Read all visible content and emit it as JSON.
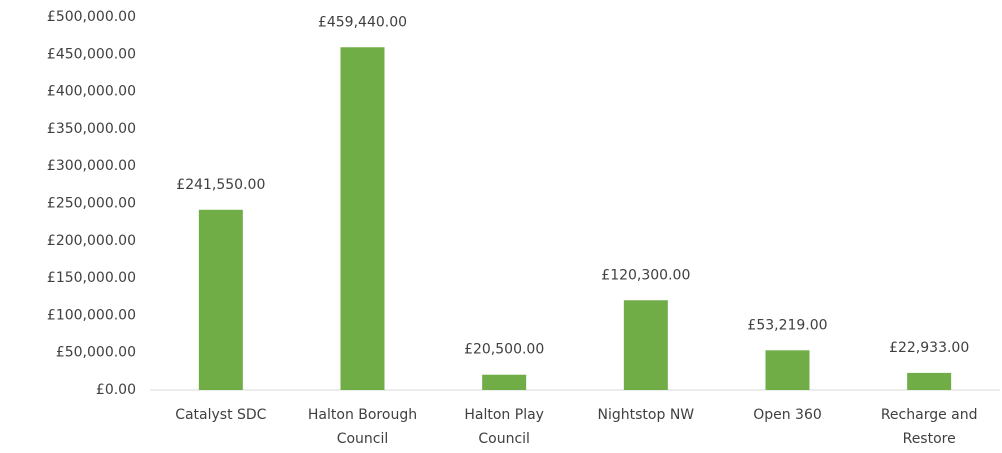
{
  "chart_data": {
    "type": "bar",
    "categories": [
      "Catalyst SDC",
      "Halton Borough Council",
      "Halton Play Council",
      "Nightstop NW",
      "Open 360",
      "Recharge and Restore"
    ],
    "values": [
      241550,
      459440,
      20500,
      120300,
      53219,
      22933
    ],
    "value_labels": [
      "£241,550.00",
      "£459,440.00",
      "£20,500.00",
      "£120,300.00",
      "£53,219.00",
      "£22,933.00"
    ],
    "color": "#70ad47",
    "ylim": [
      0,
      500000
    ],
    "yticks": [
      {
        "value": 0,
        "label": "£0.00"
      },
      {
        "value": 50000,
        "label": "£50,000.00"
      },
      {
        "value": 100000,
        "label": "£100,000.00"
      },
      {
        "value": 150000,
        "label": "£150,000.00"
      },
      {
        "value": 200000,
        "label": "£200,000.00"
      },
      {
        "value": 250000,
        "label": "£250,000.00"
      },
      {
        "value": 300000,
        "label": "£300,000.00"
      },
      {
        "value": 350000,
        "label": "£350,000.00"
      },
      {
        "value": 400000,
        "label": "£400,000.00"
      },
      {
        "value": 450000,
        "label": "£450,000.00"
      },
      {
        "value": 500000,
        "label": "£500,000.00"
      }
    ],
    "grid": false
  }
}
